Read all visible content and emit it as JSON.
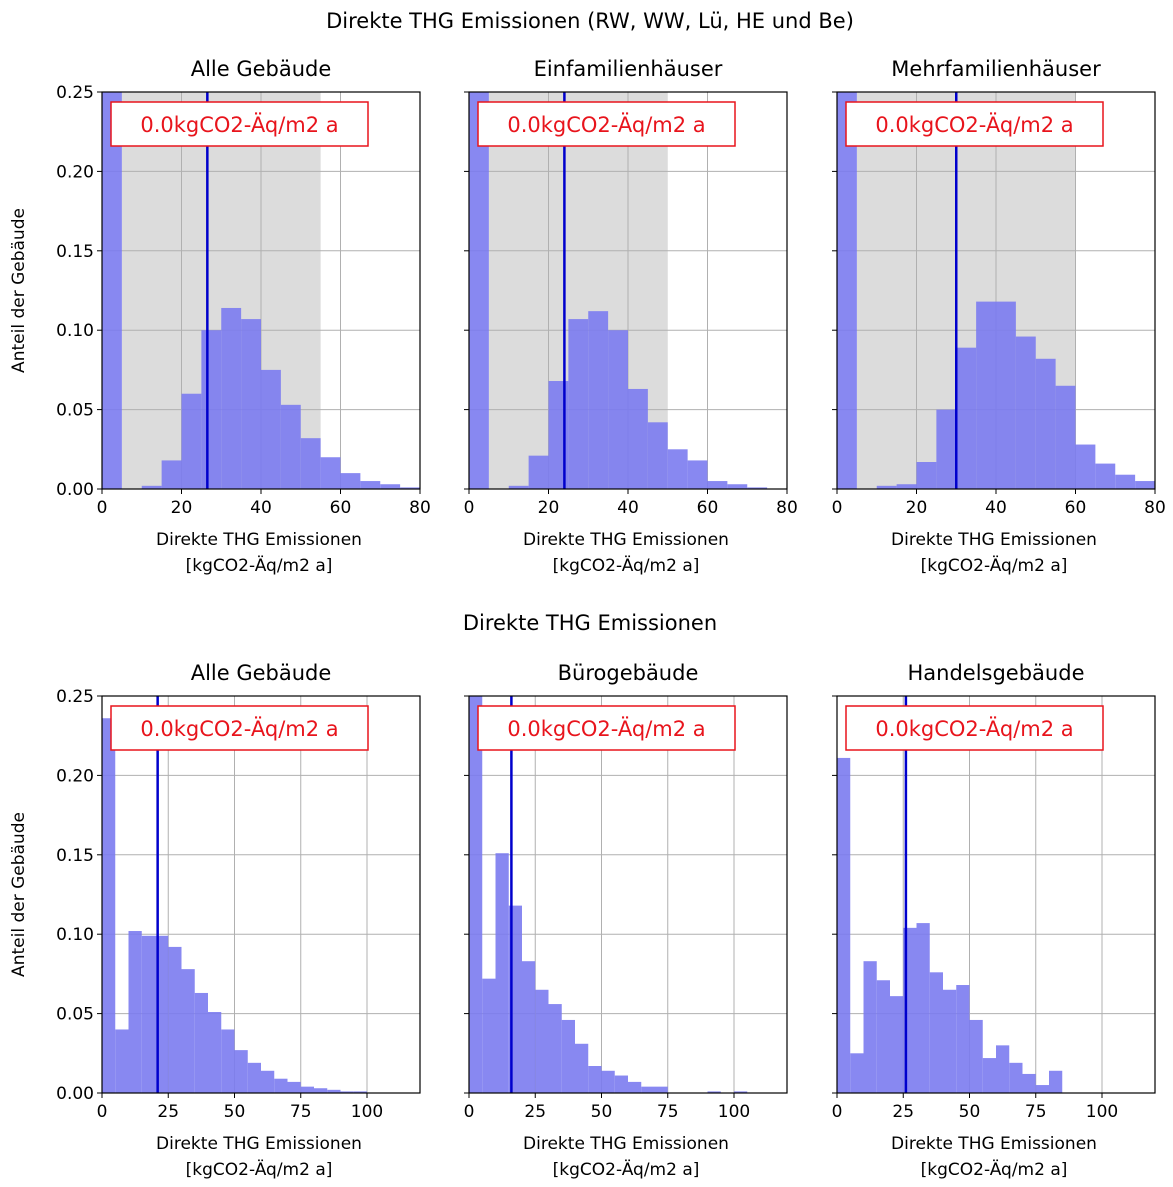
{
  "colors": {
    "bar": "#7b7bf0",
    "bar_opacity": 0.9,
    "median_line": "#0000cc",
    "band": "#dcdcdc",
    "grid": "#b0b0b0",
    "annotation": "#e8141c"
  },
  "figures": [
    {
      "suptitle": "Direkte THG Emissionen (RW, WW, Lü, HE und Be)",
      "ylabel": "Anteil der Gebäude",
      "xlabel": [
        "Direkte THG Emissionen",
        "[kgCO2-Äq/m2 a]"
      ],
      "xlim": [
        0,
        80
      ],
      "ylim": [
        0,
        0.25
      ],
      "xticks": [
        "0",
        "20",
        "40",
        "60",
        "80"
      ],
      "yticks": [
        "0.00",
        "0.05",
        "0.10",
        "0.15",
        "0.20",
        "0.25"
      ]
    },
    {
      "suptitle": "Direkte THG Emissionen",
      "ylabel": "Anteil der Gebäude",
      "xlabel": [
        "Direkte THG Emissionen",
        "[kgCO2-Äq/m2 a]"
      ],
      "xlim": [
        0,
        120
      ],
      "ylim": [
        0,
        0.25
      ],
      "xticks": [
        "0",
        "25",
        "50",
        "75",
        "100"
      ],
      "yticks": [
        "0.00",
        "0.05",
        "0.10",
        "0.15",
        "0.20",
        "0.25"
      ]
    }
  ],
  "chart_data": [
    {
      "type": "bar",
      "title": "Alle Gebäude",
      "annotation": "0.0kgCO2-Äq/m2 a",
      "band": [
        5,
        55
      ],
      "median": 26.5,
      "bin_width": 5,
      "bin_start": 0,
      "values": [
        0.25,
        0.0,
        0.002,
        0.018,
        0.06,
        0.1,
        0.114,
        0.107,
        0.075,
        0.053,
        0.032,
        0.02,
        0.01,
        0.005,
        0.003,
        0.001
      ]
    },
    {
      "type": "bar",
      "title": "Einfamilienhäuser",
      "annotation": "0.0kgCO2-Äq/m2 a",
      "band": [
        5,
        50
      ],
      "median": 24,
      "bin_width": 5,
      "bin_start": 0,
      "values": [
        0.25,
        0.0,
        0.002,
        0.021,
        0.068,
        0.107,
        0.112,
        0.1,
        0.063,
        0.042,
        0.025,
        0.018,
        0.005,
        0.003,
        0.001,
        0.0
      ]
    },
    {
      "type": "bar",
      "title": "Mehrfamilienhäuser",
      "annotation": "0.0kgCO2-Äq/m2 a",
      "band": [
        5,
        60
      ],
      "median": 30,
      "bin_width": 5,
      "bin_start": 0,
      "values": [
        0.25,
        0.0,
        0.002,
        0.003,
        0.017,
        0.05,
        0.089,
        0.118,
        0.118,
        0.096,
        0.082,
        0.065,
        0.028,
        0.016,
        0.009,
        0.005
      ]
    },
    {
      "type": "bar",
      "title": "Alle Gebäude",
      "annotation": "0.0kgCO2-Äq/m2 a",
      "median": 21,
      "bin_width": 5,
      "bin_start": 0,
      "values": [
        0.236,
        0.04,
        0.102,
        0.099,
        0.099,
        0.092,
        0.078,
        0.063,
        0.051,
        0.04,
        0.027,
        0.019,
        0.014,
        0.009,
        0.007,
        0.004,
        0.003,
        0.002,
        0.001,
        0.001,
        0.0,
        0.0,
        0.0,
        0.0
      ]
    },
    {
      "type": "bar",
      "title": "Bürogebäude",
      "annotation": "0.0kgCO2-Äq/m2 a",
      "median": 16,
      "bin_width": 5,
      "bin_start": 0,
      "values": [
        0.25,
        0.072,
        0.151,
        0.118,
        0.083,
        0.065,
        0.056,
        0.046,
        0.031,
        0.017,
        0.014,
        0.011,
        0.007,
        0.004,
        0.004,
        0.0,
        0.0,
        0.0,
        0.001,
        0.0,
        0.001,
        0.0,
        0.0,
        0.0
      ]
    },
    {
      "type": "bar",
      "title": "Handelsgebäude",
      "annotation": "0.0kgCO2-Äq/m2 a",
      "median": 26,
      "bin_width": 5,
      "bin_start": 0,
      "values": [
        0.211,
        0.025,
        0.083,
        0.071,
        0.061,
        0.104,
        0.107,
        0.076,
        0.065,
        0.068,
        0.046,
        0.022,
        0.03,
        0.019,
        0.012,
        0.005,
        0.014,
        0.0,
        0.0,
        0.0,
        0.0,
        0.0,
        0.0,
        0.0
      ]
    }
  ]
}
